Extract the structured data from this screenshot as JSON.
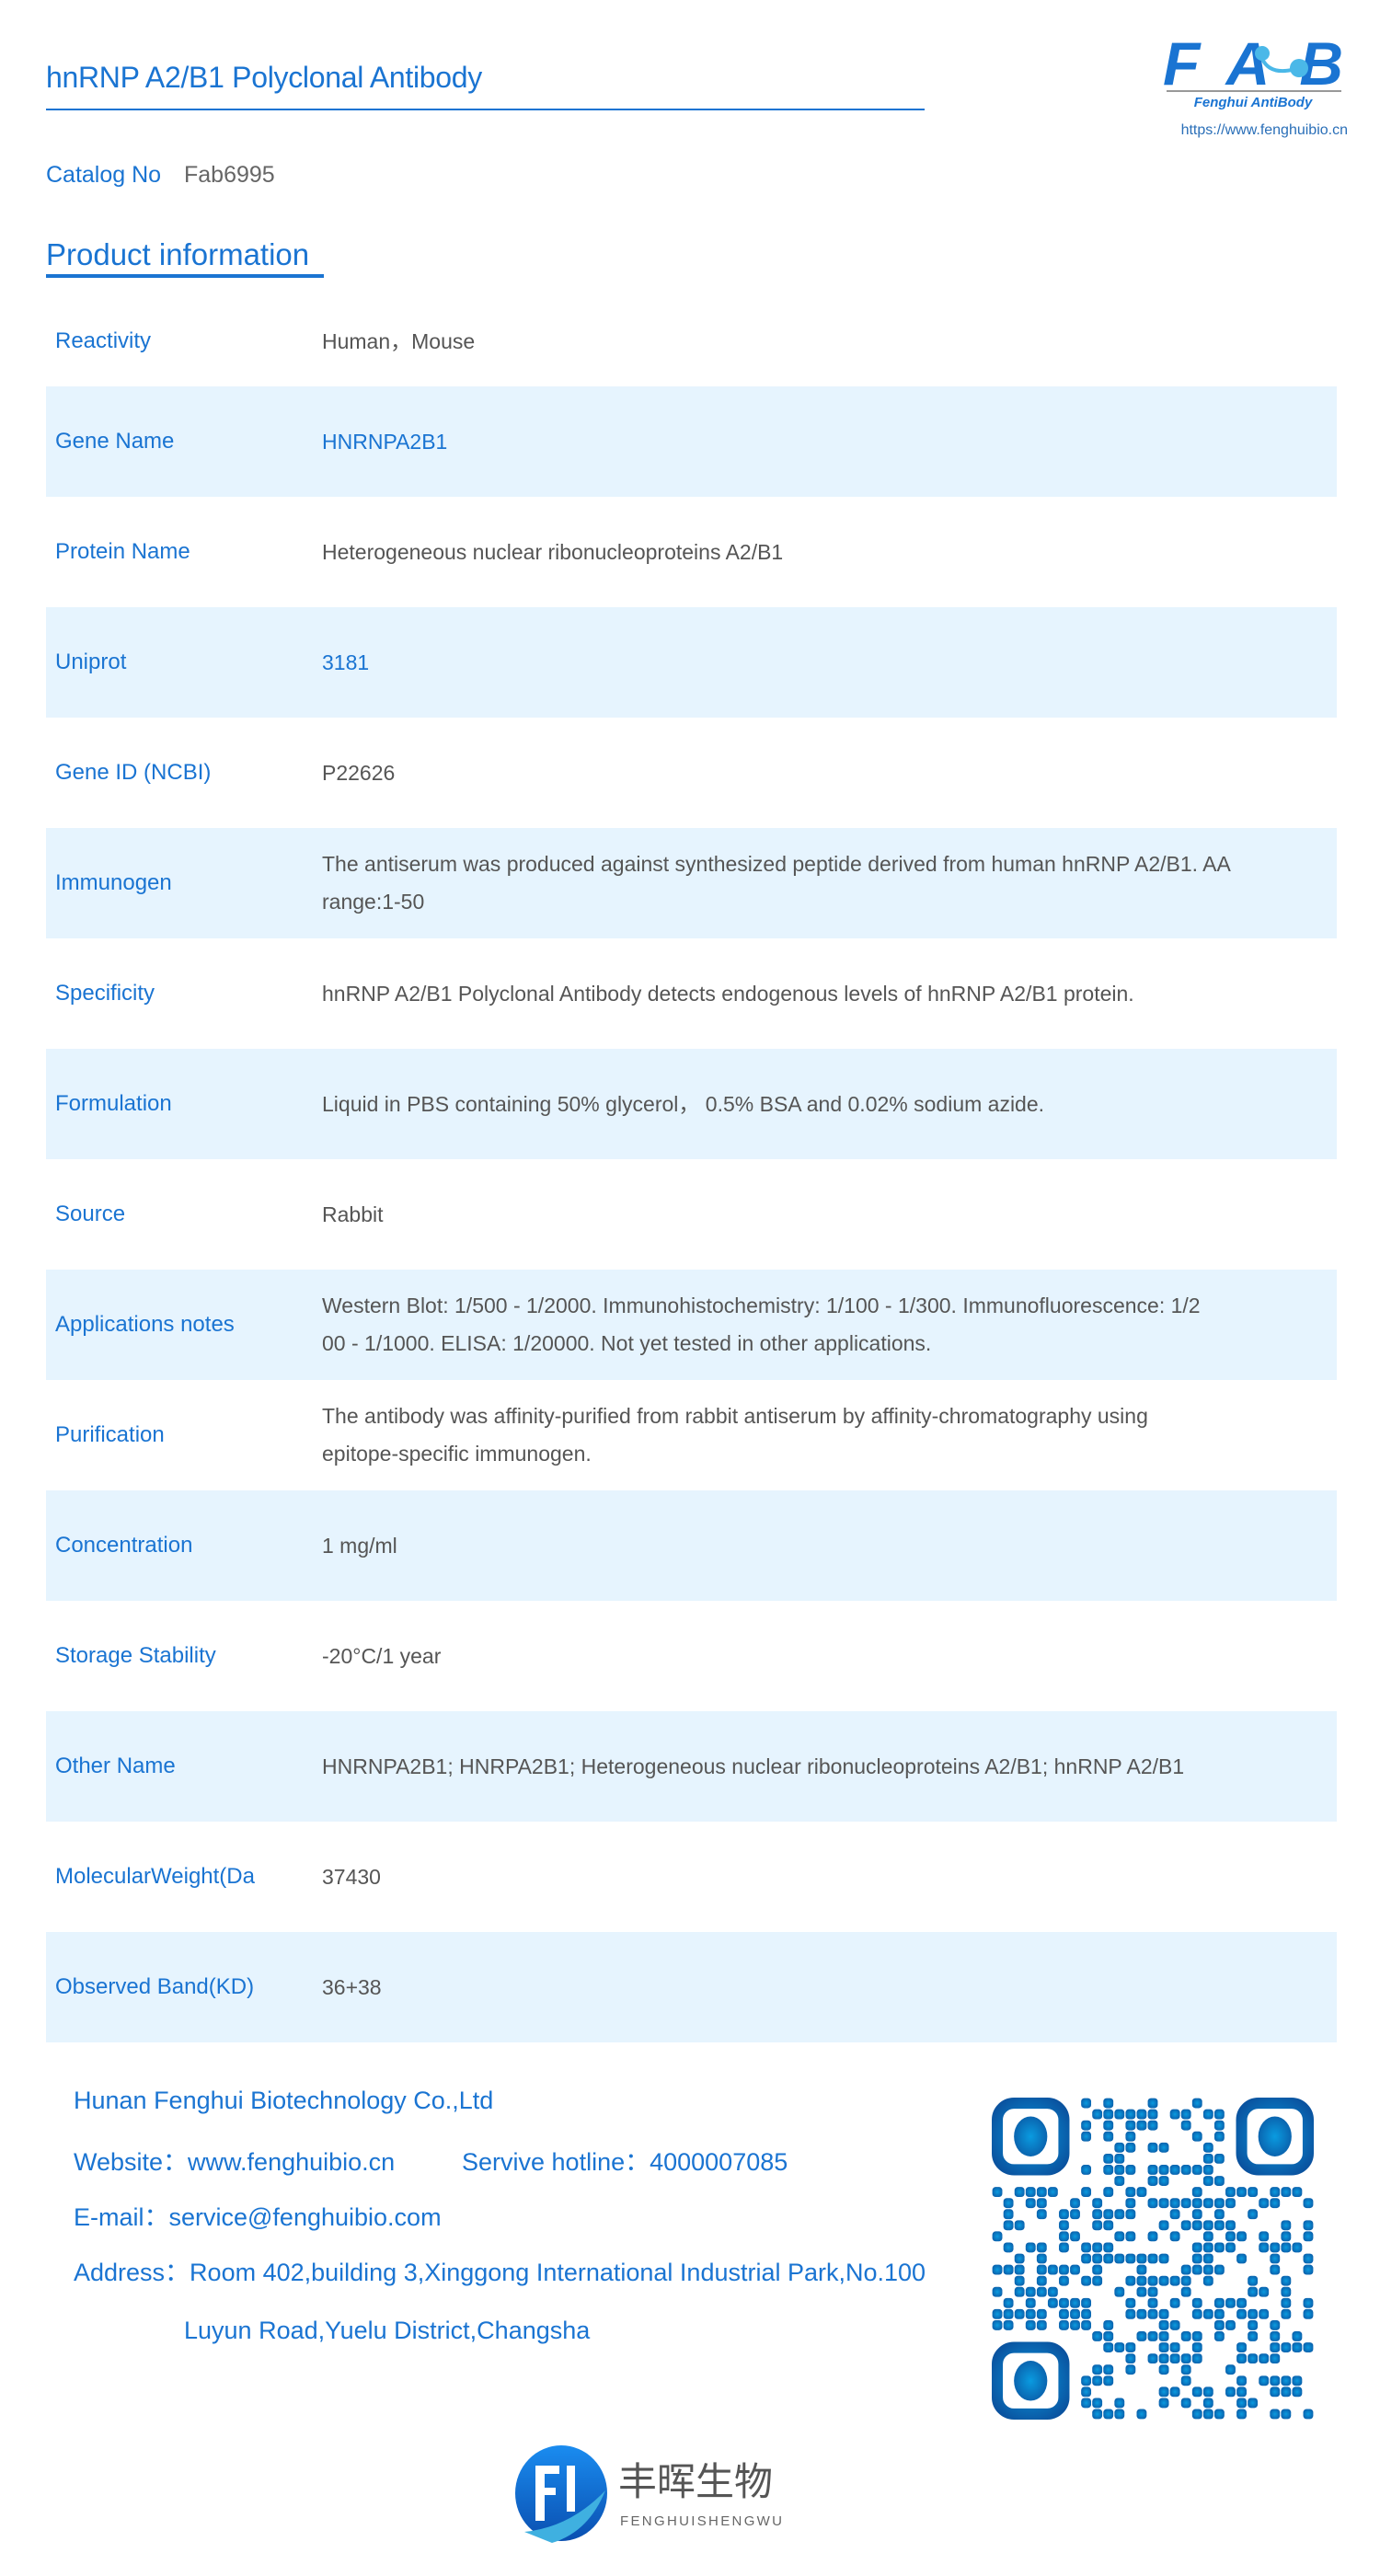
{
  "header": {
    "title": "hnRNP A2/B1 Polyclonal Antibody",
    "logo_text": "FAB",
    "logo_subtitle": "Fenghui AntiBody",
    "logo_url": "https://www.fenghuibio.cn"
  },
  "catalog": {
    "label": "Catalog No",
    "value": "Fab6995"
  },
  "section_title": "Product information",
  "rows": [
    {
      "label": "Reactivity",
      "lines": [
        "Human，Mouse"
      ]
    },
    {
      "label": "Gene Name",
      "lines": [
        "HNRNPA2B1"
      ],
      "link": true
    },
    {
      "label": "Protein Name",
      "lines": [
        "Heterogeneous nuclear ribonucleoproteins A2/B1"
      ]
    },
    {
      "label": "Uniprot",
      "lines": [
        "3181"
      ],
      "link": true
    },
    {
      "label": "Gene ID (NCBI)",
      "lines": [
        "P22626"
      ]
    },
    {
      "label": "Immunogen",
      "lines": [
        "The antiserum was produced against synthesized peptide derived from human hnRNP A2/B1. AA",
        "range:1-50"
      ]
    },
    {
      "label": "Specificity",
      "lines": [
        "hnRNP A2/B1 Polyclonal Antibody detects endogenous levels of hnRNP A2/B1 protein."
      ]
    },
    {
      "label": "Formulation",
      "lines": [
        "Liquid in PBS containing 50% glycerol， 0.5% BSA and 0.02% sodium azide."
      ]
    },
    {
      "label": "Source",
      "lines": [
        "Rabbit"
      ]
    },
    {
      "label": "Applications notes",
      "lines": [
        "Western Blot: 1/500 - 1/2000. Immunohistochemistry: 1/100 - 1/300. Immunofluorescence: 1/2",
        "00 - 1/1000. ELISA: 1/20000. Not yet tested in other applications."
      ]
    },
    {
      "label": "Purification",
      "lines": [
        "The antibody was affinity-purified from rabbit antiserum by affinity-chromatography using",
        "epitope-specific immunogen."
      ]
    },
    {
      "label": "Concentration",
      "lines": [
        "1 mg/ml"
      ]
    },
    {
      "label": "Storage Stability",
      "lines": [
        "-20°C/1 year"
      ]
    },
    {
      "label": "Other Name",
      "lines": [
        "HNRNPA2B1; HNRPA2B1; Heterogeneous nuclear ribonucleoproteins A2/B1; hnRNP A2/B1"
      ]
    },
    {
      "label": "MolecularWeight(Da",
      "lines": [
        "37430"
      ]
    },
    {
      "label": "Observed Band(KD)",
      "lines": [
        "36+38"
      ]
    }
  ],
  "footer": {
    "company": "Hunan Fenghui Biotechnology Co.,Ltd",
    "website": "Website：www.fenghuibio.cn",
    "hotline": "Servive hotline：4000007085",
    "email": "E-mail：service@fenghuibio.com",
    "address_line1": "Address：Room 402,building 3,Xinggong International Industrial Park,No.100",
    "address_line2": "Luyun Road,Yuelu District,Changsha",
    "brand_cn": "丰晖生物",
    "brand_pinyin": "FENGHUISHENGWU"
  },
  "colors": {
    "accent": "#1a74d2",
    "row_shade": "#e6f4fe",
    "value_text": "#555555",
    "qr_light": "#0a9be0",
    "qr_dark": "#0a4f9c"
  }
}
